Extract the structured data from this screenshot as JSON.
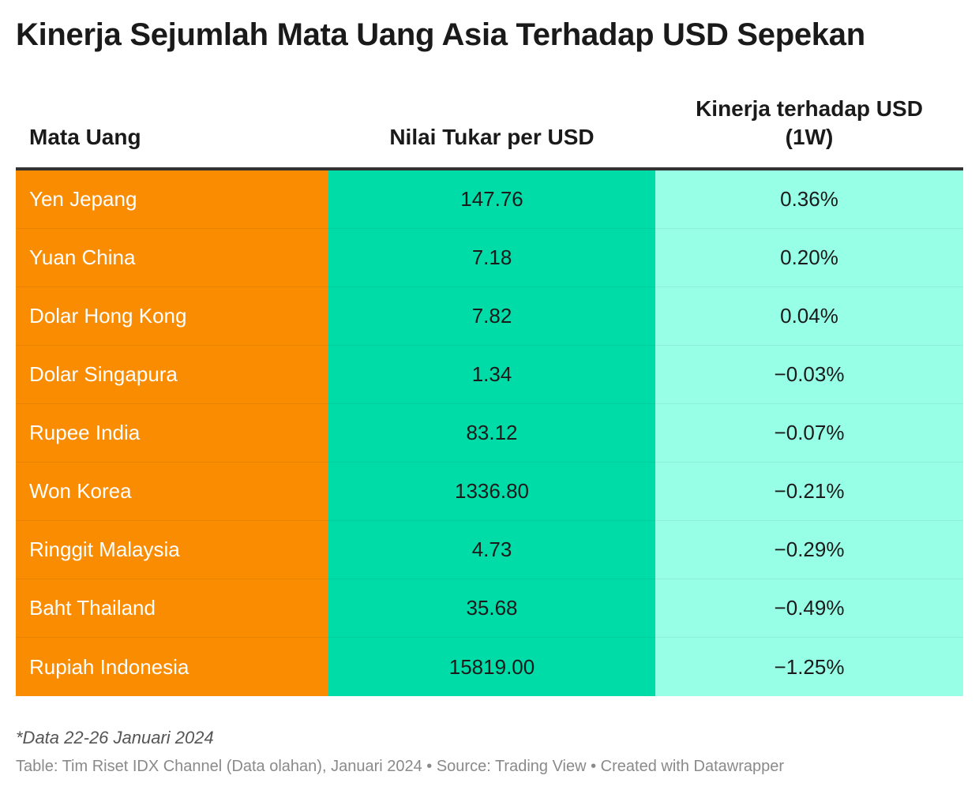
{
  "title": "Kinerja Sejumlah Mata Uang Asia Terhadap USD Sepekan",
  "colors": {
    "col1_bg": "#f98c00",
    "col2_bg": "#00dca8",
    "col3_bg": "#96ffe6",
    "header_rule": "#333333"
  },
  "chart_data": {
    "type": "table",
    "columns": [
      "Mata Uang",
      "Nilai Tukar per USD",
      "Kinerja terhadap USD (1W)"
    ],
    "column3_lines": [
      "Kinerja terhadap USD",
      "(1W)"
    ],
    "rows": [
      {
        "currency": "Yen Jepang",
        "rate": "147.76",
        "performance": "0.36%"
      },
      {
        "currency": "Yuan China",
        "rate": "7.18",
        "performance": "0.20%"
      },
      {
        "currency": "Dolar Hong Kong",
        "rate": "7.82",
        "performance": "0.04%"
      },
      {
        "currency": "Dolar Singapura",
        "rate": "1.34",
        "performance": "−0.03%"
      },
      {
        "currency": "Rupee India",
        "rate": "83.12",
        "performance": "−0.07%"
      },
      {
        "currency": "Won Korea",
        "rate": "1336.80",
        "performance": "−0.21%"
      },
      {
        "currency": "Ringgit Malaysia",
        "rate": "4.73",
        "performance": "−0.29%"
      },
      {
        "currency": "Baht Thailand",
        "rate": "35.68",
        "performance": "−0.49%"
      },
      {
        "currency": "Rupiah Indonesia",
        "rate": "15819.00",
        "performance": "−1.25%"
      }
    ]
  },
  "footer": {
    "note": "*Data 22-26 Januari 2024",
    "source": "Table: Tim Riset IDX Channel (Data olahan), Januari 2024 • Source: Trading View • Created with Datawrapper"
  }
}
